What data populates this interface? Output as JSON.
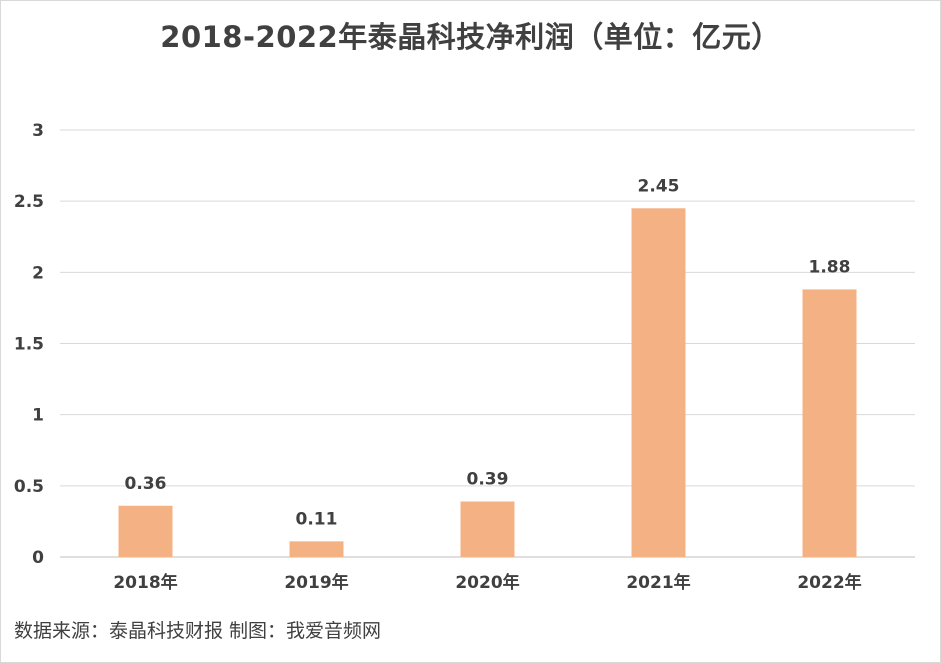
{
  "title": "2018-2022年泰晶科技净利润（单位：亿元）",
  "source_note": "数据来源：泰晶科技财报 制图：我爱音频网",
  "colors": {
    "bar": "#f4b183",
    "grid": "#d9d9d9",
    "text": "#404040"
  },
  "chart_data": {
    "type": "bar",
    "title": "2018-2022年泰晶科技净利润（单位：亿元）",
    "categories": [
      "2018年",
      "2019年",
      "2020年",
      "2021年",
      "2022年"
    ],
    "values": [
      0.36,
      0.11,
      0.39,
      2.45,
      1.88
    ],
    "data_labels": [
      "0.36",
      "0.11",
      "0.39",
      "2.45",
      "1.88"
    ],
    "y_ticks": [
      "0",
      "0.5",
      "1",
      "1.5",
      "2",
      "2.5",
      "3"
    ],
    "ylim": [
      0,
      3
    ],
    "xlabel": "",
    "ylabel": "",
    "grid": true,
    "legend": "none"
  }
}
